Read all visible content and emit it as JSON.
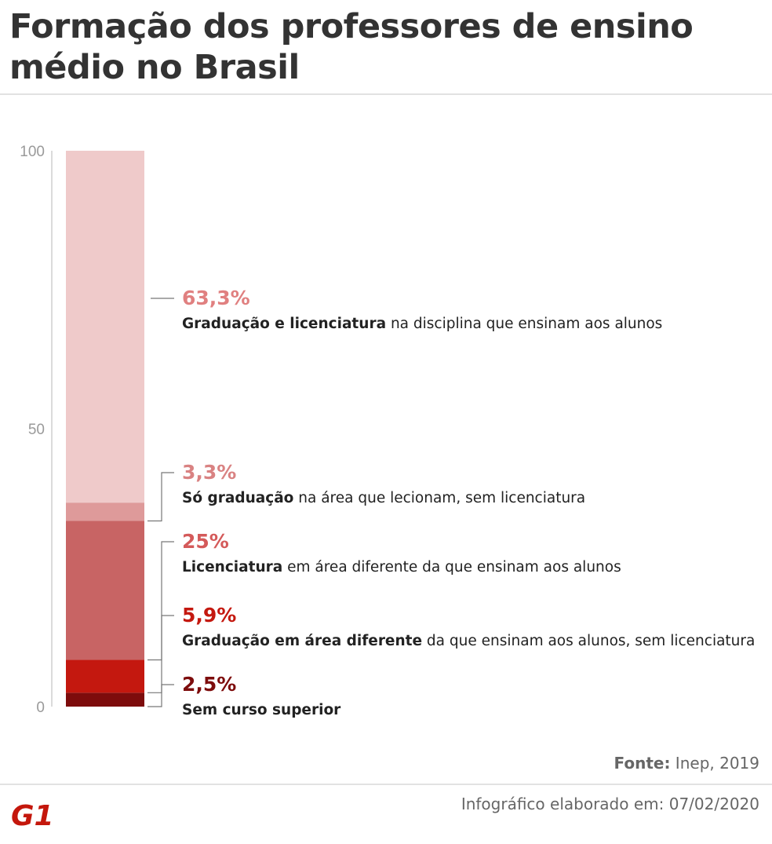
{
  "title": "Formação dos professores de ensino médio no Brasil",
  "chart_data": {
    "type": "bar",
    "stacked": true,
    "ylim": [
      0,
      100
    ],
    "yticks": [
      0,
      50,
      100
    ],
    "grid": false,
    "segments": [
      {
        "value": 2.5,
        "label": "2,5%",
        "bold": "Sem curso superior",
        "rest": "",
        "color": "#7d0c0c"
      },
      {
        "value": 5.9,
        "label": "5,9%",
        "bold": "Graduação em área diferente",
        "rest": " da que ensinam aos alunos, sem licenciatura",
        "color": "#c4180f"
      },
      {
        "value": 25,
        "label": "25%",
        "bold": "Licenciatura",
        "rest": " em área diferente da que ensinam aos alunos",
        "color": "#c86464"
      },
      {
        "value": 3.3,
        "label": "3,3%",
        "bold": "Só graduação",
        "rest": " na área que lecionam, sem licenciatura",
        "color": "#de9a9a"
      },
      {
        "value": 63.3,
        "label": "63,3%",
        "bold": "Graduação e licenciatura",
        "rest": " na disciplina que ensinam aos alunos",
        "color": "#efcaca"
      }
    ],
    "label_colors": [
      "#7d0c0c",
      "#c4180f",
      "#d45a5a",
      "#d98282",
      "#e08080"
    ]
  },
  "source": {
    "label": "Fonte:",
    "value": " Inep, 2019"
  },
  "credit": "Infográfico elaborado em: 07/02/2020",
  "logo": {
    "text": "G1",
    "color": "#c4170c"
  }
}
